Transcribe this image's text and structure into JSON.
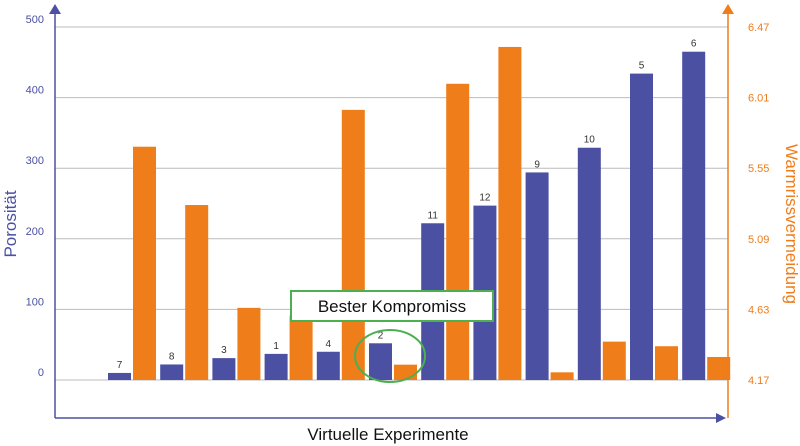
{
  "chart_data": {
    "type": "bar",
    "xlabel": "Virtuelle Experimente",
    "ylabel_left": "Porosität",
    "ylabel_right": "Warmrissvermeidung",
    "left_axis": {
      "ticks": [
        0,
        100,
        200,
        300,
        400,
        500
      ],
      "ylim": [
        0,
        500
      ]
    },
    "right_axis": {
      "ticks": [
        "4.17",
        "4.63",
        "5.09",
        "5.55",
        "6.01",
        "6.47"
      ],
      "ylim": [
        4.17,
        6.47
      ]
    },
    "grid": true,
    "colors": {
      "porositaet": "#4b50a2",
      "warmriss": "#ef7d1a",
      "grid": "#bbbbbb",
      "annotation": "#4caf50"
    },
    "categories": [
      "7",
      "8",
      "3",
      "1",
      "4",
      "2",
      "11",
      "12",
      "9",
      "10",
      "5",
      "6"
    ],
    "series": [
      {
        "name": "Porosität",
        "axis": "left",
        "values": [
          10,
          22,
          31,
          37,
          40,
          52,
          222,
          247,
          294,
          329,
          434,
          465
        ]
      },
      {
        "name": "Warmrissvermeidung",
        "axis": "right",
        "values": [
          5.69,
          5.31,
          4.64,
          4.59,
          5.93,
          4.27,
          6.1,
          6.34,
          4.22,
          4.42,
          4.39,
          4.32
        ]
      }
    ],
    "annotation": {
      "text": "Bester Kompromiss",
      "category": "2"
    }
  }
}
